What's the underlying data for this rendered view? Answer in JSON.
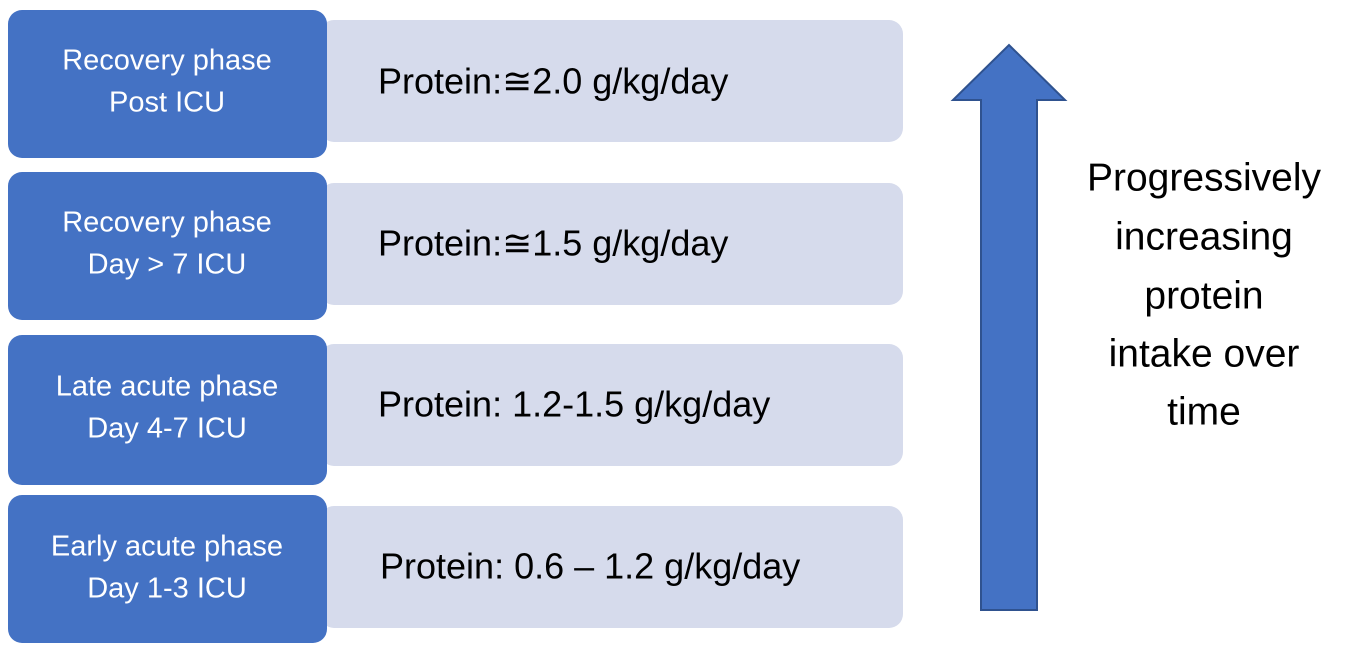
{
  "rows": [
    {
      "phase": [
        "Recovery phase",
        "Post ICU"
      ],
      "protein": "Protein:≅2.0 g/kg/day"
    },
    {
      "phase": [
        "Recovery phase",
        "Day > 7 ICU"
      ],
      "protein": "Protein:≅1.5 g/kg/day"
    },
    {
      "phase": [
        "Late acute phase",
        "Day 4-7 ICU"
      ],
      "protein": "Protein: 1.2-1.5 g/kg/day"
    },
    {
      "phase": [
        "Early acute phase",
        "Day 1-3 ICU"
      ],
      "protein": "Protein: 0.6 – 1.2 g/kg/day"
    }
  ],
  "arrow_label": [
    "Progressively",
    "increasing",
    "protein",
    "intake over",
    "time"
  ]
}
